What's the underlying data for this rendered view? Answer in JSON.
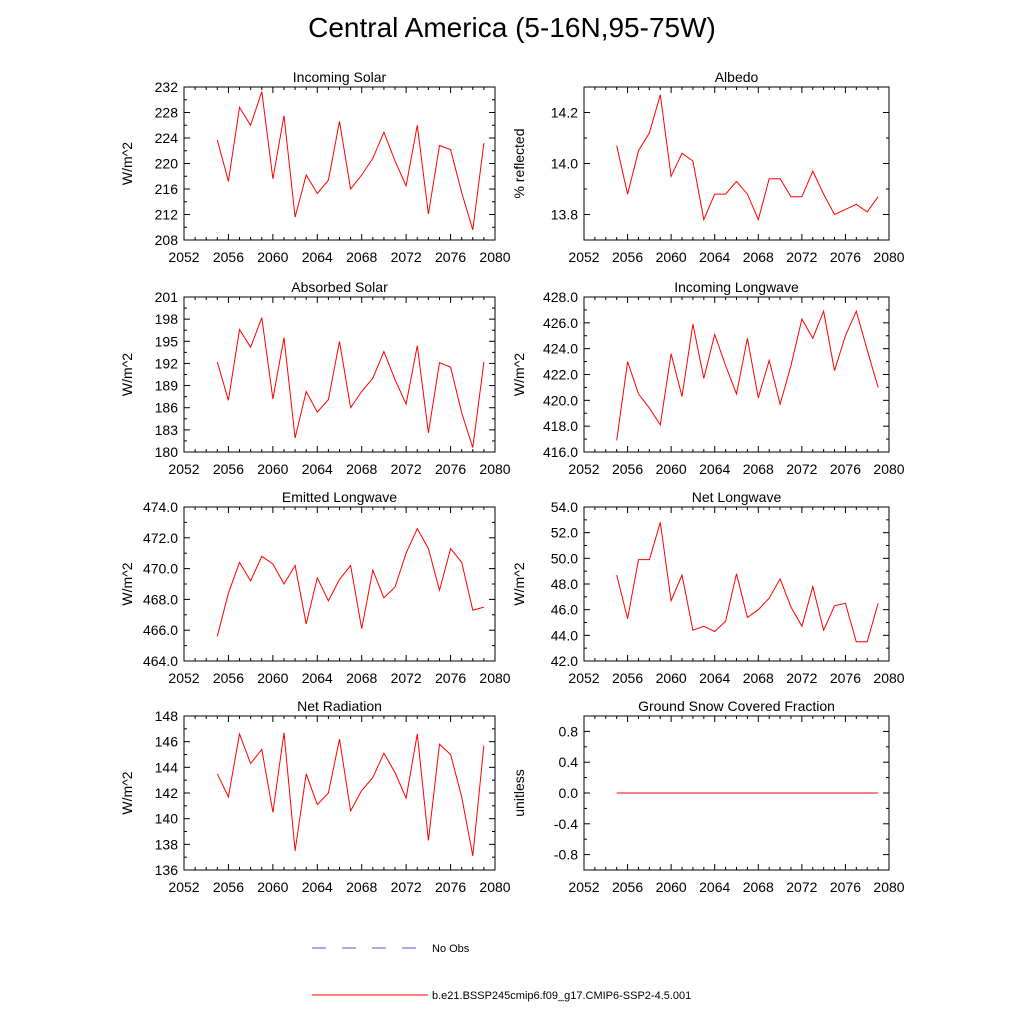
{
  "figure": {
    "title": "Central America (5-16N,95-75W)"
  },
  "legend": {
    "items": [
      {
        "label": "No Obs",
        "color": "#5555cc",
        "dash": true
      },
      {
        "label": "b.e21.BSSP245cmip6.f09_g17.CMIP6-SSP2-4.5.001",
        "color": "#ff0000",
        "dash": false
      }
    ]
  },
  "chart_data": [
    {
      "type": "line",
      "title": "Incoming Solar",
      "ylabel": "W/m^2",
      "xlim": [
        2052,
        2080
      ],
      "ylim": [
        208,
        232
      ],
      "xticks": [
        2052,
        2056,
        2060,
        2064,
        2068,
        2072,
        2076,
        2080
      ],
      "yticks": [
        "208",
        "212",
        "216",
        "220",
        "224",
        "228",
        "232"
      ],
      "x": [
        2055,
        2056,
        2057,
        2058,
        2059,
        2060,
        2061,
        2062,
        2063,
        2064,
        2065,
        2066,
        2067,
        2068,
        2069,
        2070,
        2071,
        2072,
        2073,
        2074,
        2075,
        2076,
        2077,
        2078,
        2079
      ],
      "series": [
        {
          "name": "b.e21.BSSP245cmip6.f09_g17.CMIP6-SSP2-4.5.001",
          "color": "#ff0000",
          "values": [
            223.7,
            217.2,
            228.8,
            226.0,
            231.3,
            217.6,
            227.5,
            211.6,
            218.2,
            215.3,
            217.4,
            226.6,
            216.0,
            218.2,
            220.8,
            224.9,
            220.4,
            216.5,
            226.0,
            212.1,
            222.8,
            222.2,
            215.4,
            209.6,
            223.2
          ]
        }
      ]
    },
    {
      "type": "line",
      "title": "Albedo",
      "ylabel": "% reflected",
      "xlim": [
        2052,
        2080
      ],
      "ylim": [
        13.7,
        14.3
      ],
      "xticks": [
        2052,
        2056,
        2060,
        2064,
        2068,
        2072,
        2076,
        2080
      ],
      "yticks": [
        "13.8",
        "14.0",
        "14.2"
      ],
      "x": [
        2055,
        2056,
        2057,
        2058,
        2059,
        2060,
        2061,
        2062,
        2063,
        2064,
        2065,
        2066,
        2067,
        2068,
        2069,
        2070,
        2071,
        2072,
        2073,
        2074,
        2075,
        2076,
        2077,
        2078,
        2079
      ],
      "series": [
        {
          "name": "b.e21.BSSP245cmip6.f09_g17.CMIP6-SSP2-4.5.001",
          "color": "#ff0000",
          "values": [
            14.07,
            13.88,
            14.05,
            14.12,
            14.27,
            13.95,
            14.04,
            14.01,
            13.78,
            13.88,
            13.88,
            13.93,
            13.88,
            13.78,
            13.94,
            13.94,
            13.87,
            13.87,
            13.97,
            13.88,
            13.8,
            13.82,
            13.84,
            13.81,
            13.87
          ]
        }
      ]
    },
    {
      "type": "line",
      "title": "Absorbed Solar",
      "ylabel": "W/m^2",
      "xlim": [
        2052,
        2080
      ],
      "ylim": [
        180,
        201
      ],
      "xticks": [
        2052,
        2056,
        2060,
        2064,
        2068,
        2072,
        2076,
        2080
      ],
      "yticks": [
        "180",
        "183",
        "186",
        "189",
        "192",
        "195",
        "198",
        "201"
      ],
      "x": [
        2055,
        2056,
        2057,
        2058,
        2059,
        2060,
        2061,
        2062,
        2063,
        2064,
        2065,
        2066,
        2067,
        2068,
        2069,
        2070,
        2071,
        2072,
        2073,
        2074,
        2075,
        2076,
        2077,
        2078,
        2079
      ],
      "series": [
        {
          "name": "b.e21.BSSP245cmip6.f09_g17.CMIP6-SSP2-4.5.001",
          "color": "#ff0000",
          "values": [
            192.2,
            187.0,
            196.6,
            194.2,
            198.2,
            187.2,
            195.5,
            181.9,
            188.2,
            185.4,
            187.1,
            195.0,
            186.0,
            188.2,
            190.0,
            193.6,
            189.8,
            186.5,
            194.4,
            182.6,
            192.1,
            191.5,
            185.3,
            180.6,
            192.2
          ]
        }
      ]
    },
    {
      "type": "line",
      "title": "Incoming Longwave",
      "ylabel": "W/m^2",
      "xlim": [
        2052,
        2080
      ],
      "ylim": [
        416,
        428
      ],
      "xticks": [
        2052,
        2056,
        2060,
        2064,
        2068,
        2072,
        2076,
        2080
      ],
      "yticks": [
        "416.0",
        "418.0",
        "420.0",
        "422.0",
        "424.0",
        "426.0",
        "428.0"
      ],
      "x": [
        2055,
        2056,
        2057,
        2058,
        2059,
        2060,
        2061,
        2062,
        2063,
        2064,
        2065,
        2066,
        2067,
        2068,
        2069,
        2070,
        2071,
        2072,
        2073,
        2074,
        2075,
        2076,
        2077,
        2078,
        2079
      ],
      "series": [
        {
          "name": "b.e21.BSSP245cmip6.f09_g17.CMIP6-SSP2-4.5.001",
          "color": "#ff0000",
          "values": [
            416.9,
            423.0,
            420.5,
            419.4,
            418.1,
            423.6,
            420.3,
            425.9,
            421.7,
            425.1,
            422.7,
            420.5,
            424.8,
            420.2,
            423.1,
            419.7,
            422.7,
            426.3,
            424.8,
            426.9,
            422.3,
            425.0,
            426.9,
            423.9,
            421.0
          ]
        }
      ]
    },
    {
      "type": "line",
      "title": "Emitted Longwave",
      "ylabel": "W/m^2",
      "xlim": [
        2052,
        2080
      ],
      "ylim": [
        464,
        474
      ],
      "xticks": [
        2052,
        2056,
        2060,
        2064,
        2068,
        2072,
        2076,
        2080
      ],
      "yticks": [
        "464.0",
        "466.0",
        "468.0",
        "470.0",
        "472.0",
        "474.0"
      ],
      "x": [
        2055,
        2056,
        2057,
        2058,
        2059,
        2060,
        2061,
        2062,
        2063,
        2064,
        2065,
        2066,
        2067,
        2068,
        2069,
        2070,
        2071,
        2072,
        2073,
        2074,
        2075,
        2076,
        2077,
        2078,
        2079
      ],
      "series": [
        {
          "name": "b.e21.BSSP245cmip6.f09_g17.CMIP6-SSP2-4.5.001",
          "color": "#ff0000",
          "values": [
            465.6,
            468.4,
            470.4,
            469.2,
            470.8,
            470.3,
            469.0,
            470.2,
            466.4,
            469.4,
            467.9,
            469.3,
            470.2,
            466.1,
            469.9,
            468.1,
            468.8,
            471.0,
            472.6,
            471.3,
            468.6,
            471.3,
            470.4,
            467.3,
            467.5
          ]
        }
      ]
    },
    {
      "type": "line",
      "title": "Net Longwave",
      "ylabel": "W/m^2",
      "xlim": [
        2052,
        2080
      ],
      "ylim": [
        42,
        54
      ],
      "xticks": [
        2052,
        2056,
        2060,
        2064,
        2068,
        2072,
        2076,
        2080
      ],
      "yticks": [
        "42.0",
        "44.0",
        "46.0",
        "48.0",
        "50.0",
        "52.0",
        "54.0"
      ],
      "x": [
        2055,
        2056,
        2057,
        2058,
        2059,
        2060,
        2061,
        2062,
        2063,
        2064,
        2065,
        2066,
        2067,
        2068,
        2069,
        2070,
        2071,
        2072,
        2073,
        2074,
        2075,
        2076,
        2077,
        2078,
        2079
      ],
      "series": [
        {
          "name": "b.e21.BSSP245cmip6.f09_g17.CMIP6-SSP2-4.5.001",
          "color": "#ff0000",
          "values": [
            48.7,
            45.3,
            49.9,
            49.9,
            52.8,
            46.7,
            48.7,
            44.4,
            44.7,
            44.3,
            45.1,
            48.8,
            45.4,
            46.0,
            46.9,
            48.4,
            46.2,
            44.7,
            47.8,
            44.4,
            46.3,
            46.5,
            43.5,
            43.5,
            46.5
          ]
        }
      ]
    },
    {
      "type": "line",
      "title": "Net Radiation",
      "ylabel": "W/m^2",
      "xlim": [
        2052,
        2080
      ],
      "ylim": [
        136,
        148
      ],
      "xticks": [
        2052,
        2056,
        2060,
        2064,
        2068,
        2072,
        2076,
        2080
      ],
      "yticks": [
        "136",
        "138",
        "140",
        "142",
        "144",
        "146",
        "148"
      ],
      "x": [
        2055,
        2056,
        2057,
        2058,
        2059,
        2060,
        2061,
        2062,
        2063,
        2064,
        2065,
        2066,
        2067,
        2068,
        2069,
        2070,
        2071,
        2072,
        2073,
        2074,
        2075,
        2076,
        2077,
        2078,
        2079
      ],
      "series": [
        {
          "name": "b.e21.BSSP245cmip6.f09_g17.CMIP6-SSP2-4.5.001",
          "color": "#ff0000",
          "values": [
            143.5,
            141.7,
            146.6,
            144.3,
            145.4,
            140.5,
            146.7,
            137.5,
            143.5,
            141.1,
            142.0,
            146.2,
            140.6,
            142.2,
            143.2,
            145.1,
            143.6,
            141.6,
            146.6,
            138.3,
            145.8,
            145.0,
            141.7,
            137.1,
            145.7
          ]
        }
      ]
    },
    {
      "type": "line",
      "title": "Ground Snow Covered Fraction",
      "ylabel": "unitless",
      "xlim": [
        2052,
        2080
      ],
      "ylim": [
        -1.0,
        1.0
      ],
      "xticks": [
        2052,
        2056,
        2060,
        2064,
        2068,
        2072,
        2076,
        2080
      ],
      "yticks": [
        "-0.8",
        "-0.4",
        "0.0",
        "0.4",
        "0.8"
      ],
      "x": [
        2055,
        2056,
        2057,
        2058,
        2059,
        2060,
        2061,
        2062,
        2063,
        2064,
        2065,
        2066,
        2067,
        2068,
        2069,
        2070,
        2071,
        2072,
        2073,
        2074,
        2075,
        2076,
        2077,
        2078,
        2079
      ],
      "series": [
        {
          "name": "b.e21.BSSP245cmip6.f09_g17.CMIP6-SSP2-4.5.001",
          "color": "#ff0000",
          "values": [
            0,
            0,
            0,
            0,
            0,
            0,
            0,
            0,
            0,
            0,
            0,
            0,
            0,
            0,
            0,
            0,
            0,
            0,
            0,
            0,
            0,
            0,
            0,
            0,
            0
          ]
        }
      ]
    }
  ]
}
